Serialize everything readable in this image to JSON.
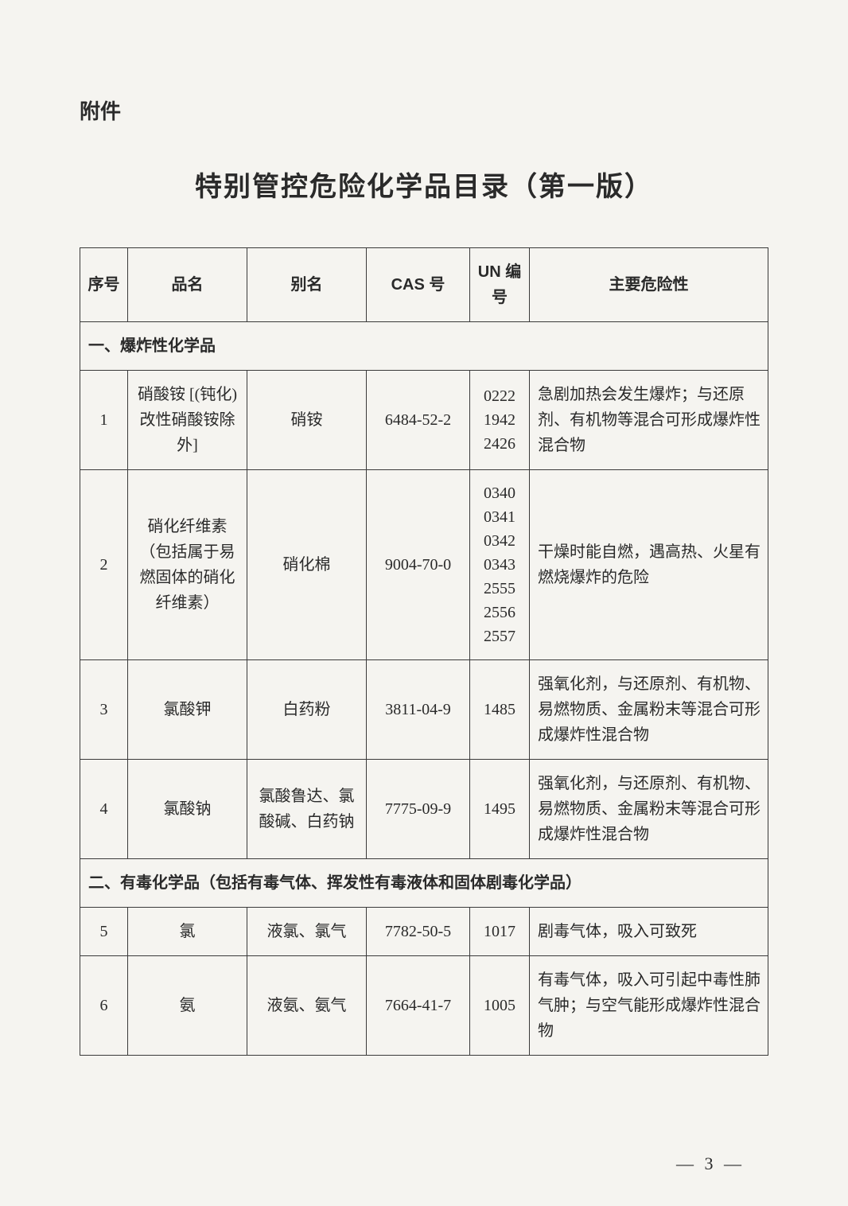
{
  "attachment_label": "附件",
  "title": "特别管控危险化学品目录（第一版）",
  "columns": {
    "seq": "序号",
    "name": "品名",
    "alias": "别名",
    "cas": "CAS 号",
    "un": "UN 编号",
    "hazard": "主要危险性"
  },
  "section1": "一、爆炸性化学品",
  "section2": "二、有毒化学品（包括有毒气体、挥发性有毒液体和固体剧毒化学品）",
  "rows": [
    {
      "seq": "1",
      "name": "硝酸铵 [(钝化)改性硝酸铵除外]",
      "alias": "硝铵",
      "cas": "6484-52-2",
      "un": "0222\n1942\n2426",
      "hazard": "急剧加热会发生爆炸；与还原剂、有机物等混合可形成爆炸性混合物"
    },
    {
      "seq": "2",
      "name": "硝化纤维素（包括属于易燃固体的硝化纤维素）",
      "alias": "硝化棉",
      "cas": "9004-70-0",
      "un": "0340\n0341\n0342\n0343\n2555\n2556\n2557",
      "hazard": "干燥时能自燃，遇高热、火星有燃烧爆炸的危险"
    },
    {
      "seq": "3",
      "name": "氯酸钾",
      "alias": "白药粉",
      "cas": "3811-04-9",
      "un": "1485",
      "hazard": "强氧化剂，与还原剂、有机物、易燃物质、金属粉末等混合可形成爆炸性混合物"
    },
    {
      "seq": "4",
      "name": "氯酸钠",
      "alias": "氯酸鲁达、氯酸碱、白药钠",
      "cas": "7775-09-9",
      "un": "1495",
      "hazard": "强氧化剂，与还原剂、有机物、易燃物质、金属粉末等混合可形成爆炸性混合物"
    },
    {
      "seq": "5",
      "name": "氯",
      "alias": "液氯、氯气",
      "cas": "7782-50-5",
      "un": "1017",
      "hazard": "剧毒气体，吸入可致死"
    },
    {
      "seq": "6",
      "name": "氨",
      "alias": "液氨、氨气",
      "cas": "7664-41-7",
      "un": "1005",
      "hazard": "有毒气体，吸入可引起中毒性肺气肿；与空气能形成爆炸性混合物"
    }
  ],
  "page_number": "—   3   —"
}
